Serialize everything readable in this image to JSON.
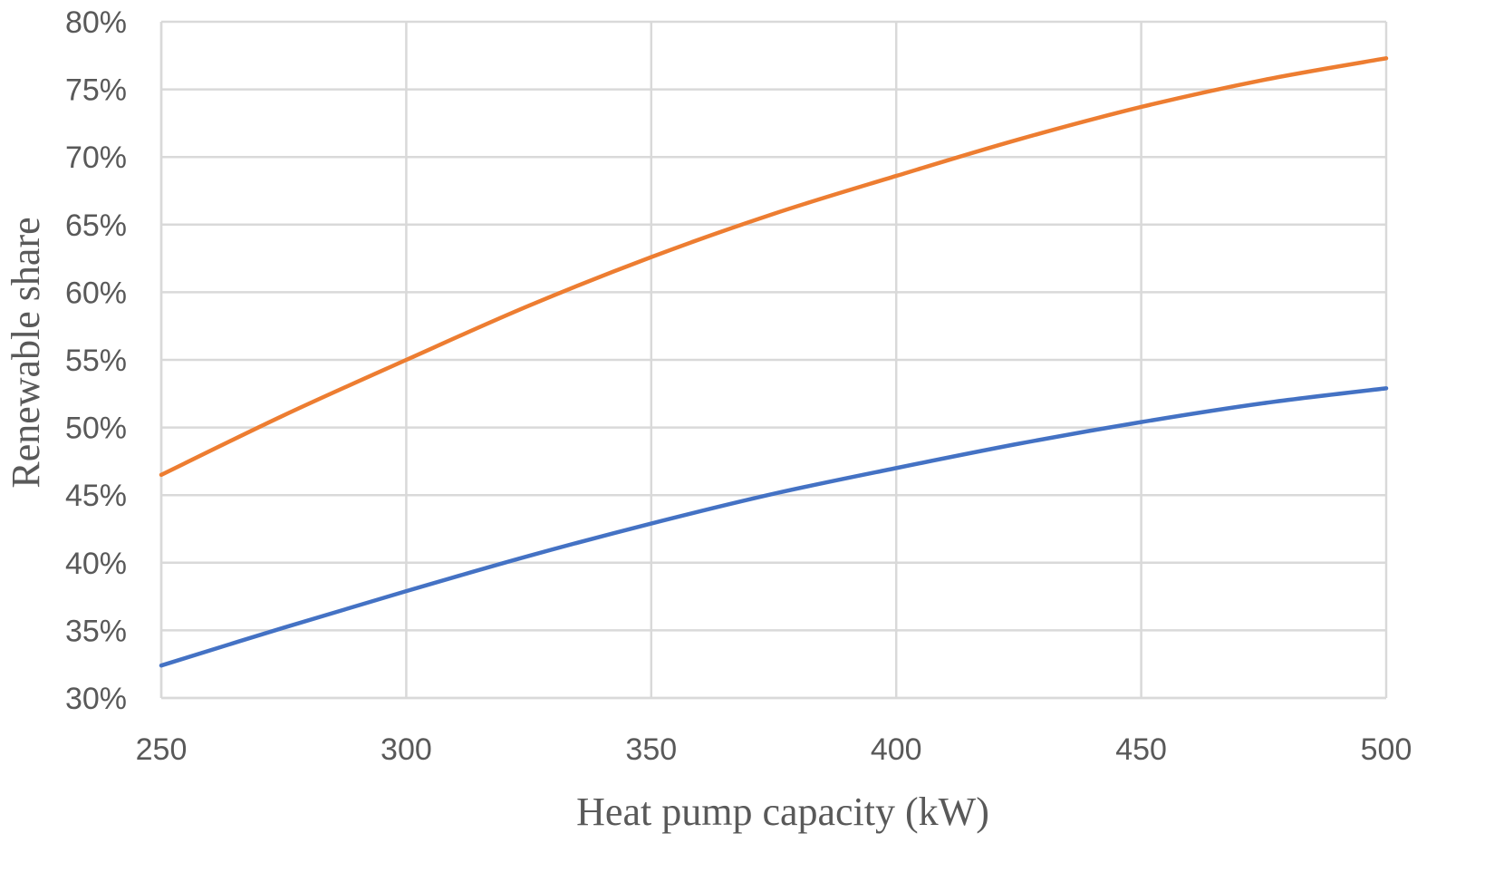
{
  "chart_data": {
    "type": "line",
    "xlabel": "Heat pump capacity (kW)",
    "ylabel": "Renewable share",
    "xlim": [
      250,
      500
    ],
    "ylim": [
      0.3,
      0.8
    ],
    "x_ticks": [
      250,
      300,
      350,
      400,
      450,
      500
    ],
    "x_tick_labels": [
      "250",
      "300",
      "350",
      "400",
      "450",
      "500"
    ],
    "y_ticks": [
      0.3,
      0.35,
      0.4,
      0.45,
      0.5,
      0.55,
      0.6,
      0.65,
      0.7,
      0.75,
      0.8
    ],
    "y_tick_labels": [
      "30%",
      "35%",
      "40%",
      "45%",
      "50%",
      "55%",
      "60%",
      "65%",
      "70%",
      "75%",
      "80%"
    ],
    "grid": true,
    "legend": "none",
    "series": [
      {
        "color": "#ed7d31",
        "x": [
          250,
          275,
          300,
          325,
          350,
          375,
          400,
          425,
          450,
          475,
          500
        ],
        "y": [
          0.465,
          0.509,
          0.55,
          0.59,
          0.626,
          0.658,
          0.686,
          0.713,
          0.737,
          0.757,
          0.773
        ]
      },
      {
        "color": "#4472c4",
        "x": [
          250,
          275,
          300,
          325,
          350,
          375,
          400,
          425,
          450,
          475,
          500
        ],
        "y": [
          0.324,
          0.352,
          0.379,
          0.405,
          0.429,
          0.451,
          0.47,
          0.488,
          0.504,
          0.518,
          0.529
        ]
      }
    ]
  }
}
